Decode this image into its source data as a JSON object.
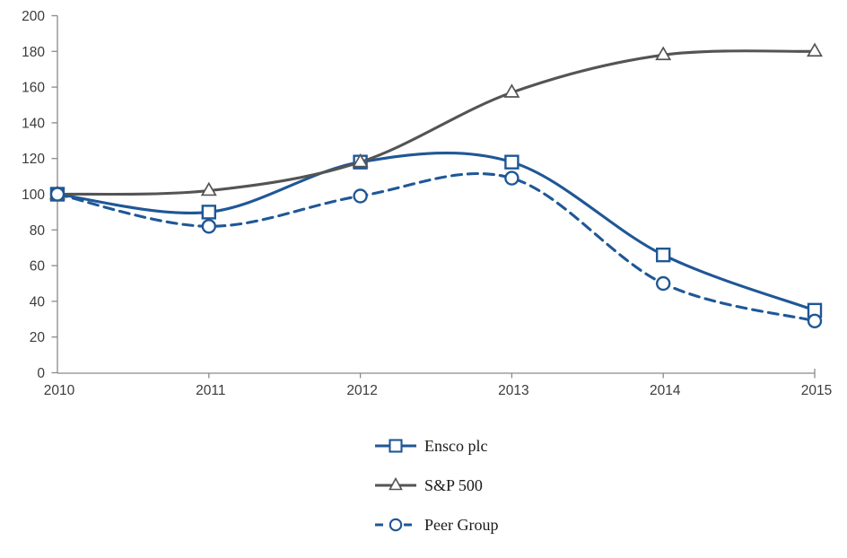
{
  "chart_data": {
    "type": "line",
    "title": "",
    "xlabel": "",
    "ylabel": "",
    "categories": [
      "2010",
      "2011",
      "2012",
      "2013",
      "2014",
      "2015"
    ],
    "series": [
      {
        "name": "Ensco plc",
        "values": [
          100,
          90,
          118,
          118,
          66,
          35
        ],
        "color": "#1f5796",
        "marker": "square",
        "line_style": "solid"
      },
      {
        "name": "S&P 500",
        "values": [
          100,
          102,
          118,
          157,
          178,
          180
        ],
        "color": "#545454",
        "marker": "triangle",
        "line_style": "solid"
      },
      {
        "name": "Peer Group",
        "values": [
          100,
          82,
          99,
          109,
          50,
          29
        ],
        "color": "#1f5796",
        "marker": "circle",
        "line_style": "dashed"
      }
    ],
    "ylim": [
      0,
      200
    ],
    "ytick_step": 20,
    "grid": false,
    "smooth": true,
    "legend_position": "bottom",
    "axis_color": "#8a8a8a",
    "tick_label_color": "#3b3b3b"
  }
}
